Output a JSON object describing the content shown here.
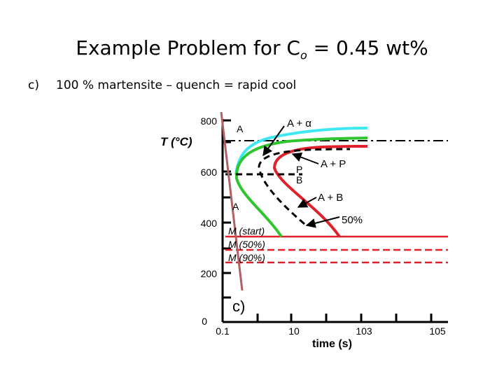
{
  "title": {
    "prefix": "Example Problem for C",
    "subscript": "o",
    "suffix": " = 0.45 wt%"
  },
  "subtitle": {
    "letter": "c)",
    "text": "100 % martensite – quench = rapid cool"
  },
  "diagram": {
    "y_axis_label": "T (°C)",
    "y_ticks": [
      "800",
      "600",
      "400",
      "200",
      "0"
    ],
    "x_ticks": [
      "0.1",
      "10",
      "103",
      "105"
    ],
    "x_axis_label": "time (s)",
    "regions": {
      "austenite_top": "A",
      "a_plus_alpha": "A + α",
      "p_label": "P",
      "b_label": "B",
      "a_plus_p": "A + P",
      "a_plus_b": "A + B",
      "austenite_bottom": "A",
      "fifty_percent": "50%"
    },
    "martensite_lines": [
      "M (start)",
      "M (50%)",
      "M (90%)"
    ],
    "path_label": "c)",
    "colors": {
      "cyan_curve": "#3ee8f0",
      "green_curve": "#2ec52e",
      "red_curve": "#e0202a",
      "quench_path": "#b06060"
    }
  }
}
